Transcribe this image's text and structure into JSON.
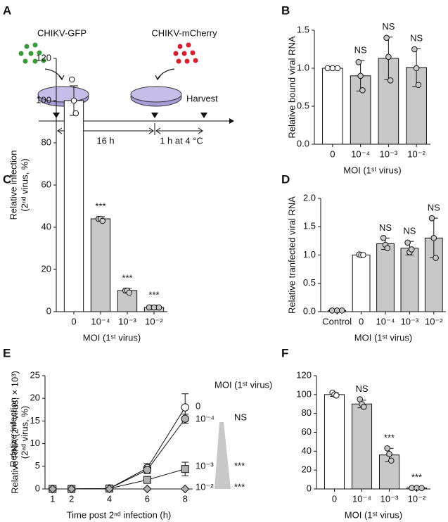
{
  "diagram": {
    "panel": "A",
    "virus1": "CHIKV-GFP",
    "virus2": "CHIKV-mCherry",
    "harvest": "Harvest",
    "interval1": "16 h",
    "interval2": "1 h at 4 °C"
  },
  "chart_data": [
    {
      "type": "bar",
      "panel": "B",
      "ylabel": [
        "Relative bound viral RNA"
      ],
      "xlabel": "MOI (1ˢᵗ virus)",
      "categories": [
        "0",
        "10⁻⁴",
        "10⁻³",
        "10⁻²"
      ],
      "values": [
        1.0,
        0.9,
        1.13,
        1.01
      ],
      "errors": [
        0.02,
        0.2,
        0.28,
        0.25
      ],
      "points": [
        [
          1.0,
          1.0,
          1.0
        ],
        [
          1.08,
          0.9,
          0.71
        ],
        [
          1.4,
          1.15,
          0.84
        ],
        [
          1.25,
          1.0,
          0.78
        ]
      ],
      "annotations": [
        null,
        "NS",
        "NS",
        "NS"
      ],
      "colors": [
        "#ffffff",
        "#c8c8c8",
        "#c8c8c8",
        "#c8c8c8"
      ],
      "ylim": [
        0,
        1.5
      ],
      "yticks": [
        {
          "value": 0,
          "label": "0.0"
        },
        {
          "value": 0.5,
          "label": "0.5"
        },
        {
          "value": 1,
          "label": "1.0"
        },
        {
          "value": 1.5,
          "label": "1.5"
        }
      ]
    },
    {
      "type": "bar",
      "panel": "C",
      "ylabel": [
        "Relative infection",
        "(2ⁿᵈ virus, %)"
      ],
      "xlabel": "MOI (1ˢᵗ virus)",
      "categories": [
        "0",
        "10⁻⁴",
        "10⁻³",
        "10⁻²"
      ],
      "values": [
        100,
        44,
        10,
        2
      ],
      "errors": [
        7,
        1,
        1,
        1
      ],
      "points": [
        [
          110,
          100,
          94
        ],
        [
          44,
          44,
          43
        ],
        [
          10,
          10,
          9
        ],
        [
          2,
          2,
          2
        ]
      ],
      "annotations": [
        null,
        "***",
        "***",
        "***"
      ],
      "colors": [
        "#ffffff",
        "#c8c8c8",
        "#c8c8c8",
        "#c8c8c8"
      ],
      "ylim": [
        0,
        120
      ],
      "yticks": [
        0,
        20,
        40,
        60,
        80,
        100,
        120
      ]
    },
    {
      "type": "bar",
      "panel": "D",
      "ylabel": [
        "Relative tranfected viral RNA"
      ],
      "xlabel": "MOI (1ˢᵗ virus)",
      "categories": [
        "Control",
        "0",
        "10⁻⁴",
        "10⁻³",
        "10⁻²"
      ],
      "values": [
        0.02,
        1.0,
        1.2,
        1.12,
        1.3
      ],
      "errors": [
        0.01,
        0.02,
        0.1,
        0.12,
        0.35
      ],
      "points": [
        [
          0.02,
          0.02,
          0.02
        ],
        [
          1.01,
          1.0,
          1.0
        ],
        [
          1.3,
          1.18,
          1.12
        ],
        [
          1.22,
          1.05,
          1.1
        ],
        [
          1.65,
          1.3,
          0.95
        ]
      ],
      "annotations": [
        null,
        null,
        "NS",
        "NS",
        "NS"
      ],
      "colors": [
        "#c8c8c8",
        "#ffffff",
        "#c8c8c8",
        "#c8c8c8",
        "#c8c8c8"
      ],
      "ylim": [
        0,
        2
      ],
      "yticks": [
        {
          "value": 0,
          "label": "0.0"
        },
        {
          "value": 0.5,
          "label": "0.5"
        },
        {
          "value": 1,
          "label": "1.0"
        },
        {
          "value": 1.5,
          "label": "1.5"
        },
        {
          "value": 2,
          "label": "2.0"
        }
      ]
    },
    {
      "type": "line",
      "panel": "E",
      "ylabel": [
        "Relative RNA (2ⁿᵈ virus, × 10³)"
      ],
      "xlabel": "Time post 2ⁿᵈ infection (h)",
      "legend_title": "MOI (1ˢᵗ virus)",
      "x": [
        1,
        2,
        4,
        6,
        8
      ],
      "series": [
        {
          "name": "0",
          "color": "#ffffff",
          "marker": "circle",
          "values": [
            0,
            0,
            0.1,
            4.6,
            18
          ],
          "errors": [
            null,
            null,
            null,
            1,
            3
          ],
          "significance": null
        },
        {
          "name": "10⁻⁴",
          "color": "#b0b0b0",
          "marker": "circle",
          "values": [
            0,
            0,
            0.1,
            4.2,
            15.5
          ],
          "errors": [
            null,
            null,
            null,
            0.8,
            1
          ],
          "significance": "NS"
        },
        {
          "name": "10⁻³",
          "color": "#b0b0b0",
          "marker": "square",
          "values": [
            0,
            0,
            0.1,
            2,
            4.4
          ],
          "errors": [
            null,
            null,
            null,
            null,
            1.5
          ],
          "significance": "***"
        },
        {
          "name": "10⁻²",
          "color": "#b0b0b0",
          "marker": "diamond",
          "values": [
            0,
            0,
            0,
            0,
            0
          ],
          "errors": [
            null,
            null,
            null,
            null,
            null
          ],
          "significance": "***"
        }
      ],
      "xlim": [
        0.6,
        8.4
      ],
      "xticks": [
        1,
        2,
        4,
        6,
        8
      ],
      "ylim": [
        0,
        25
      ],
      "yticks": [
        0,
        5,
        10,
        15,
        20,
        25
      ]
    },
    {
      "type": "bar",
      "panel": "F",
      "ylabel": [
        "Relative infection",
        "(2ⁿᵈ virus, %)"
      ],
      "xlabel": "MOI (1ˢᵗ virus)",
      "categories": [
        "0",
        "10⁻⁴",
        "10⁻³",
        "10⁻²"
      ],
      "values": [
        100,
        90,
        36,
        1
      ],
      "errors": [
        2,
        4,
        7,
        0.5
      ],
      "points": [
        [
          102,
          100,
          99
        ],
        [
          95,
          90,
          87
        ],
        [
          43,
          37,
          30
        ],
        [
          1,
          1,
          1
        ]
      ],
      "annotations": [
        null,
        "NS",
        "***",
        "***"
      ],
      "colors": [
        "#ffffff",
        "#c8c8c8",
        "#c8c8c8",
        "#c8c8c8"
      ],
      "ylim": [
        0,
        120
      ],
      "yticks": [
        0,
        20,
        40,
        60,
        80,
        100,
        120
      ]
    }
  ]
}
